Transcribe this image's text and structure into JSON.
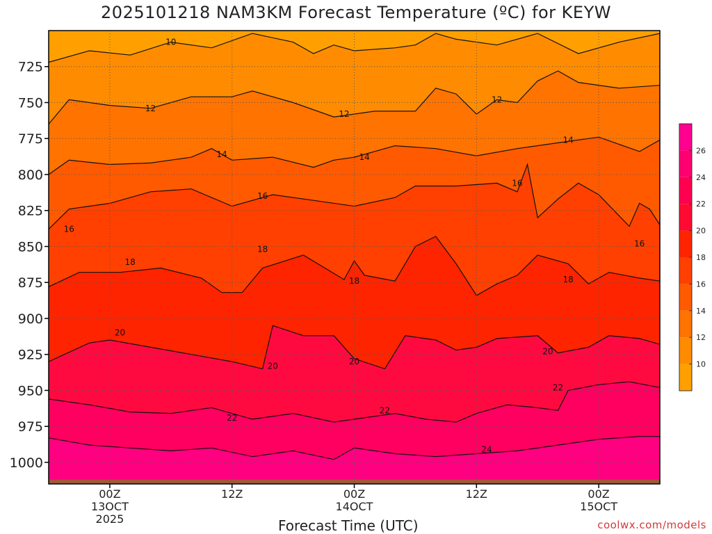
{
  "title": "2025101218 NAM3KM Forecast Temperature (ºC) for KEYW",
  "credit": "coolwx.com/models",
  "chart_data": {
    "type": "heatmap",
    "title": "2025101218 NAM3KM Forecast Temperature (ºC) for KEYW",
    "xlabel": "Forecast Time (UTC)",
    "ylabel": "",
    "x_unit": "hours since 2025-10-12 18Z",
    "xlim": [
      0,
      60
    ],
    "ylim": [
      1015,
      700
    ],
    "y_ticks": [
      725,
      750,
      775,
      800,
      825,
      850,
      875,
      900,
      925,
      950,
      975,
      1000
    ],
    "x_ticks": [
      {
        "x": 6,
        "lines": [
          "00Z",
          "13OCT",
          "2025"
        ]
      },
      {
        "x": 18,
        "lines": [
          "12Z"
        ]
      },
      {
        "x": 30,
        "lines": [
          "00Z",
          "14OCT"
        ]
      },
      {
        "x": 42,
        "lines": [
          "12Z"
        ]
      },
      {
        "x": 54,
        "lines": [
          "00Z",
          "15OCT"
        ]
      }
    ],
    "grid": true,
    "contour_interval": 2,
    "contours": [
      {
        "level": 10,
        "points": [
          [
            0,
            722
          ],
          [
            4,
            714
          ],
          [
            8,
            717
          ],
          [
            12,
            708
          ],
          [
            16,
            712
          ],
          [
            20,
            702
          ],
          [
            24,
            708
          ],
          [
            26,
            716
          ],
          [
            28,
            710
          ],
          [
            30,
            714
          ],
          [
            34,
            712
          ],
          [
            36,
            710
          ],
          [
            38,
            702
          ],
          [
            40,
            706
          ],
          [
            44,
            710
          ],
          [
            48,
            702
          ],
          [
            52,
            716
          ],
          [
            56,
            708
          ],
          [
            60,
            702
          ]
        ],
        "labels": [
          [
            12,
            708
          ]
        ]
      },
      {
        "level": 12,
        "points": [
          [
            0,
            765
          ],
          [
            2,
            748
          ],
          [
            6,
            752
          ],
          [
            10,
            754
          ],
          [
            14,
            746
          ],
          [
            18,
            746
          ],
          [
            20,
            742
          ],
          [
            24,
            750
          ],
          [
            28,
            760
          ],
          [
            32,
            756
          ],
          [
            36,
            756
          ],
          [
            38,
            740
          ],
          [
            40,
            744
          ],
          [
            42,
            758
          ],
          [
            44,
            748
          ],
          [
            46,
            750
          ],
          [
            48,
            735
          ],
          [
            50,
            728
          ],
          [
            52,
            736
          ],
          [
            56,
            740
          ],
          [
            60,
            738
          ]
        ],
        "labels": [
          [
            10,
            754
          ],
          [
            29,
            758
          ],
          [
            44,
            748
          ]
        ]
      },
      {
        "level": 14,
        "points": [
          [
            0,
            800
          ],
          [
            2,
            790
          ],
          [
            6,
            793
          ],
          [
            10,
            792
          ],
          [
            14,
            788
          ],
          [
            16,
            782
          ],
          [
            18,
            790
          ],
          [
            22,
            788
          ],
          [
            26,
            795
          ],
          [
            28,
            790
          ],
          [
            30,
            788
          ],
          [
            34,
            780
          ],
          [
            38,
            782
          ],
          [
            42,
            787
          ],
          [
            46,
            782
          ],
          [
            50,
            778
          ],
          [
            54,
            774
          ],
          [
            58,
            784
          ],
          [
            60,
            776
          ]
        ],
        "labels": [
          [
            17,
            786
          ],
          [
            31,
            788
          ],
          [
            51,
            776
          ]
        ]
      },
      {
        "level": 16,
        "points": [
          [
            0,
            838
          ],
          [
            2,
            824
          ],
          [
            6,
            820
          ],
          [
            10,
            812
          ],
          [
            14,
            810
          ],
          [
            18,
            822
          ],
          [
            22,
            814
          ],
          [
            26,
            818
          ],
          [
            30,
            822
          ],
          [
            34,
            816
          ],
          [
            36,
            808
          ],
          [
            40,
            808
          ],
          [
            44,
            806
          ],
          [
            46,
            812
          ],
          [
            47,
            793
          ],
          [
            48,
            830
          ],
          [
            50,
            817
          ],
          [
            52,
            806
          ],
          [
            54,
            814
          ],
          [
            57,
            836
          ],
          [
            58,
            820
          ],
          [
            59,
            824
          ],
          [
            60,
            835
          ]
        ],
        "labels": [
          [
            2,
            838
          ],
          [
            21,
            815
          ],
          [
            46,
            806
          ],
          [
            58,
            848
          ]
        ]
      },
      {
        "level": 18,
        "points": [
          [
            0,
            878
          ],
          [
            3,
            868
          ],
          [
            7,
            868
          ],
          [
            11,
            865
          ],
          [
            15,
            872
          ],
          [
            17,
            882
          ],
          [
            19,
            882
          ],
          [
            21,
            865
          ],
          [
            25,
            856
          ],
          [
            29,
            873
          ],
          [
            30,
            860
          ],
          [
            31,
            870
          ],
          [
            34,
            874
          ],
          [
            36,
            850
          ],
          [
            38,
            843
          ],
          [
            40,
            862
          ],
          [
            42,
            884
          ],
          [
            44,
            876
          ],
          [
            46,
            870
          ],
          [
            48,
            856
          ],
          [
            51,
            862
          ],
          [
            53,
            876
          ],
          [
            55,
            868
          ],
          [
            58,
            872
          ],
          [
            60,
            874
          ]
        ],
        "labels": [
          [
            8,
            861
          ],
          [
            21,
            852
          ],
          [
            30,
            874
          ],
          [
            51,
            873
          ]
        ]
      },
      {
        "level": 20,
        "points": [
          [
            0,
            930
          ],
          [
            4,
            917
          ],
          [
            6,
            915
          ],
          [
            10,
            920
          ],
          [
            14,
            925
          ],
          [
            18,
            930
          ],
          [
            21,
            935
          ],
          [
            22,
            905
          ],
          [
            25,
            912
          ],
          [
            28,
            912
          ],
          [
            30,
            928
          ],
          [
            33,
            935
          ],
          [
            35,
            912
          ],
          [
            38,
            915
          ],
          [
            40,
            922
          ],
          [
            42,
            920
          ],
          [
            44,
            914
          ],
          [
            48,
            912
          ],
          [
            50,
            924
          ],
          [
            53,
            920
          ],
          [
            55,
            912
          ],
          [
            58,
            914
          ],
          [
            60,
            918
          ]
        ],
        "labels": [
          [
            7,
            910
          ],
          [
            22,
            933
          ],
          [
            30,
            930
          ],
          [
            49,
            923
          ]
        ]
      },
      {
        "level": 22,
        "points": [
          [
            0,
            956
          ],
          [
            4,
            960
          ],
          [
            8,
            965
          ],
          [
            12,
            966
          ],
          [
            16,
            962
          ],
          [
            20,
            970
          ],
          [
            24,
            966
          ],
          [
            28,
            972
          ],
          [
            30,
            970
          ],
          [
            34,
            966
          ],
          [
            37,
            970
          ],
          [
            40,
            972
          ],
          [
            42,
            966
          ],
          [
            45,
            960
          ],
          [
            48,
            962
          ],
          [
            50,
            964
          ],
          [
            51,
            950
          ],
          [
            54,
            946
          ],
          [
            57,
            944
          ],
          [
            60,
            948
          ]
        ],
        "labels": [
          [
            18,
            969
          ],
          [
            33,
            964
          ],
          [
            50,
            948
          ]
        ]
      },
      {
        "level": 24,
        "points": [
          [
            0,
            983
          ],
          [
            4,
            988
          ],
          [
            8,
            990
          ],
          [
            12,
            992
          ],
          [
            16,
            990
          ],
          [
            20,
            996
          ],
          [
            24,
            992
          ],
          [
            28,
            998
          ],
          [
            30,
            990
          ],
          [
            34,
            994
          ],
          [
            38,
            996
          ],
          [
            42,
            994
          ],
          [
            46,
            992
          ],
          [
            50,
            988
          ],
          [
            54,
            984
          ],
          [
            58,
            982
          ],
          [
            60,
            982
          ]
        ],
        "labels": [
          [
            43,
            991
          ]
        ]
      }
    ],
    "colorbar": {
      "levels": [
        8,
        10,
        12,
        14,
        16,
        18,
        20,
        22,
        24,
        26,
        28
      ],
      "labels": [
        10,
        12,
        14,
        16,
        18,
        20,
        22,
        24,
        26
      ],
      "colors": [
        "#ffa000",
        "#ff8c00",
        "#ff7300",
        "#ff5a00",
        "#ff4000",
        "#ff2400",
        "#ff0a32",
        "#ff0050",
        "#ff0070",
        "#ff0090"
      ]
    },
    "fill_colors": {
      "10": "#ffa000",
      "12": "#ff8c00",
      "14": "#ff7300",
      "16": "#ff5a00",
      "18": "#ff4000",
      "20": "#ff2400",
      "22": "#ff0a40",
      "24": "#ff0060",
      "26": "#ff0080"
    },
    "ground_color": "#a0583a",
    "surface_pressure": [
      1012,
      1012,
      1012,
      1012,
      1012,
      1012,
      1012
    ]
  }
}
